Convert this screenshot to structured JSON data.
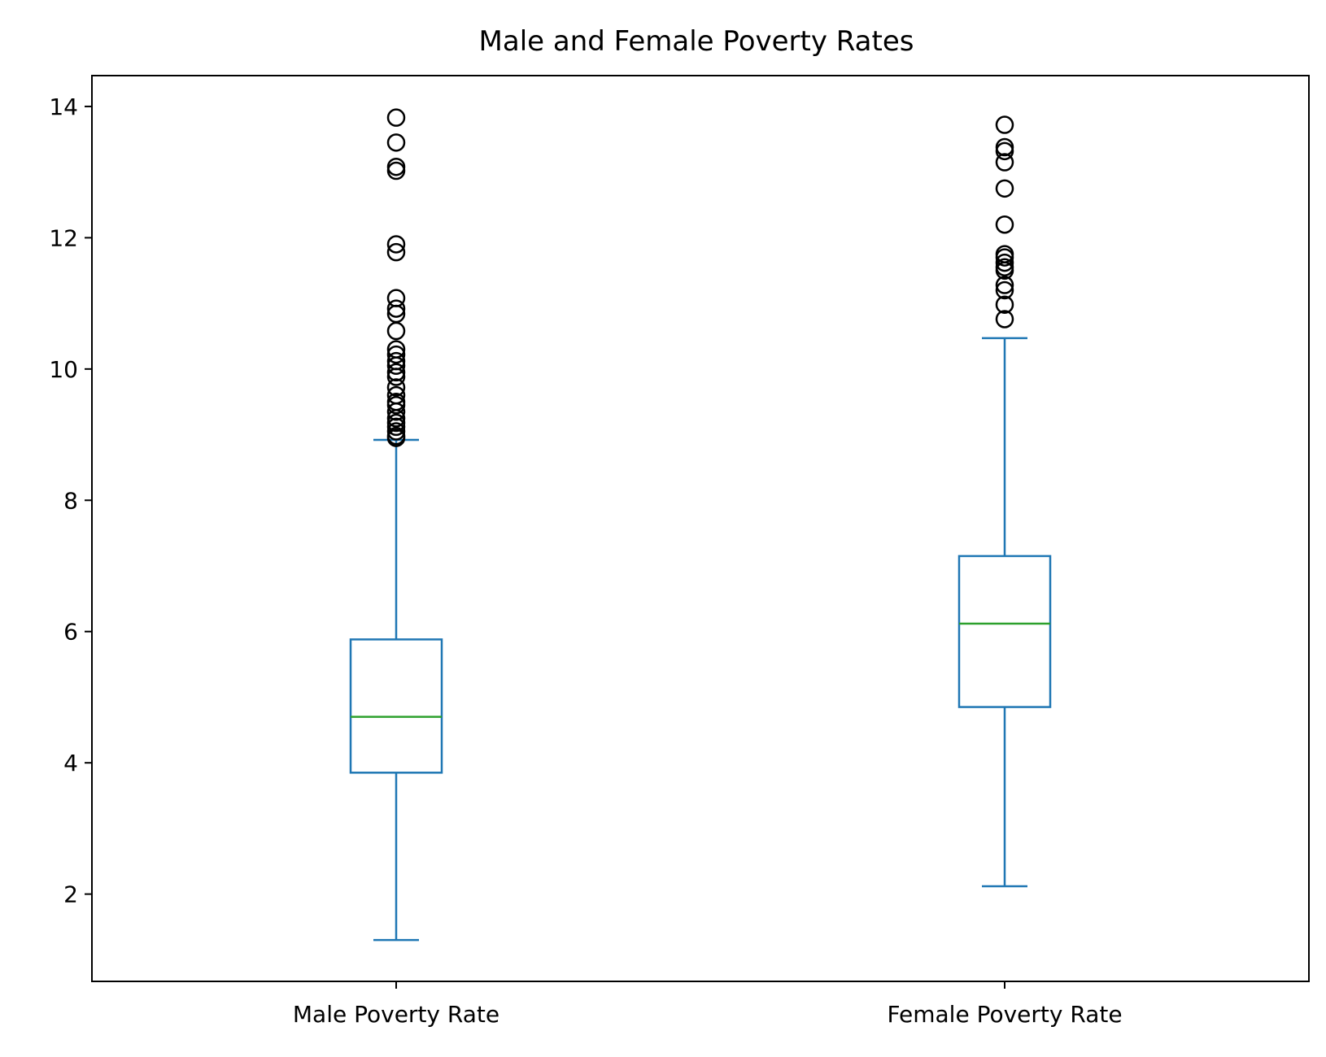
{
  "chart_data": {
    "type": "box",
    "title": "Male and Female Poverty Rates",
    "xlabel": "",
    "ylabel": "",
    "ylim": [
      0.67,
      14.47
    ],
    "yticks": [
      2,
      4,
      6,
      8,
      10,
      12,
      14
    ],
    "grid": false,
    "categories": [
      "Male Poverty Rate",
      "Female Poverty Rate"
    ],
    "boxes": [
      {
        "name": "Male Poverty Rate",
        "whisker_low": 1.3,
        "q1": 3.85,
        "median": 4.7,
        "q3": 5.88,
        "whisker_high": 8.92,
        "outliers": [
          13.83,
          13.45,
          13.08,
          13.02,
          11.9,
          11.78,
          11.08,
          10.92,
          10.84,
          10.58,
          10.3,
          10.22,
          10.12,
          10.05,
          9.95,
          9.88,
          9.72,
          9.6,
          9.5,
          9.45,
          9.35,
          9.25,
          9.18,
          9.12,
          9.05,
          8.98,
          8.95
        ]
      },
      {
        "name": "Female Poverty Rate",
        "whisker_low": 2.12,
        "q1": 4.85,
        "median": 6.12,
        "q3": 7.15,
        "whisker_high": 10.47,
        "outliers": [
          13.72,
          13.38,
          13.32,
          13.15,
          12.75,
          12.2,
          11.75,
          11.7,
          11.62,
          11.55,
          11.5,
          11.28,
          11.2,
          10.98,
          10.76
        ]
      }
    ],
    "colors": {
      "box": "#1f77b4",
      "median": "#2ca02c",
      "outlier": "#000000",
      "axes": "#000000"
    }
  }
}
